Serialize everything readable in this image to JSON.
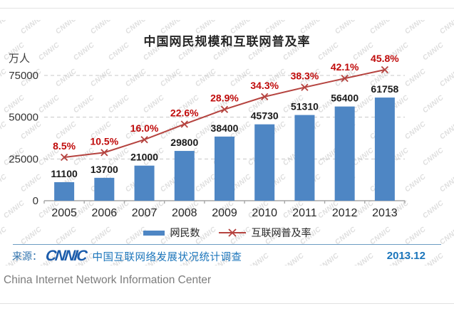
{
  "page": {
    "footer": "China Internet Network Information Center"
  },
  "chart": {
    "title": "中国网民规模和互联网普及率",
    "unit_label": "万人",
    "watermark": "CNNIC",
    "source_prefix": "来源：",
    "source_logo": "CNNIC",
    "source_text": "中国互联网络发展状况统计调查",
    "date": "2013.12",
    "colors": {
      "bar": "#4e86c4",
      "line": "#b5433f",
      "pct_label": "#c00b0b",
      "bar_label": "#1a1a1a",
      "grid": "#c8c8c8",
      "axis": "#a6a6a6",
      "tick_label": "#333333",
      "year_label": "#262626",
      "source_blue": "#1b75bb",
      "divider_blue": "#6d9cc3"
    }
  },
  "chart_data": {
    "type": "bar+line",
    "title": "中国网民规模和互联网普及率",
    "ylabel": "万人",
    "categories": [
      "2005",
      "2006",
      "2007",
      "2008",
      "2009",
      "2010",
      "2011",
      "2012",
      "2013"
    ],
    "series": [
      {
        "name": "网民数",
        "type": "bar",
        "unit": "万人",
        "values": [
          11100,
          13700,
          21000,
          29800,
          38400,
          45730,
          51310,
          56400,
          61758
        ]
      },
      {
        "name": "互联网普及率",
        "type": "line",
        "unit": "%",
        "values": [
          8.5,
          10.5,
          16.0,
          22.6,
          28.9,
          34.3,
          38.3,
          42.1,
          45.8
        ]
      }
    ],
    "yticks": [
      0,
      25000,
      50000,
      75000
    ],
    "ylim": [
      0,
      87500
    ],
    "grid": true,
    "legend_position": "bottom"
  }
}
